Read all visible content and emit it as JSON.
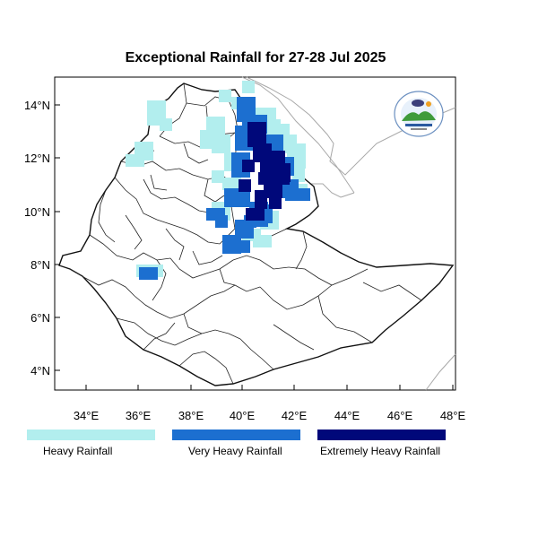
{
  "map": {
    "title": "Exceptional Rainfall for 27-28 Jul 2025",
    "lon_ticks": [
      "34°E",
      "36°E",
      "38°E",
      "40°E",
      "42°E",
      "44°E",
      "46°E",
      "48°E"
    ],
    "lat_ticks": [
      "14°N",
      "12°N",
      "10°N",
      "8°N",
      "6°N",
      "4°N"
    ]
  },
  "legend": [
    {
      "label": "Heavy Rainfall",
      "color": "#b2eeee"
    },
    {
      "label": "Very Heavy Rainfall",
      "color": "#1c6fd0"
    },
    {
      "label": "Extremely Heavy Rainfall",
      "color": "#00087a"
    }
  ],
  "colors": {
    "heavy": "#b2eeee",
    "very_heavy": "#1c6fd0",
    "extreme": "#00087a",
    "border": "#222222",
    "neighbor": "#a0a0a0"
  }
}
